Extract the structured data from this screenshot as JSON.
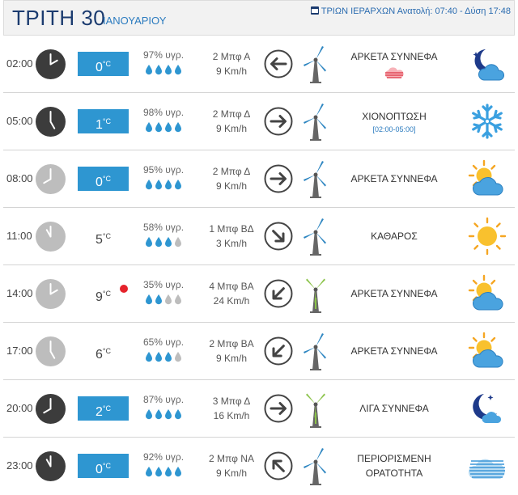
{
  "header": {
    "day": "ΤΡΙΤΗ 30",
    "month": "ΙΑΝΟΥΑΡΙΟΥ",
    "info": "ΤΡΙΩΝ ΙΕΡΑΡΧΩΝ Ανατολή: 07:40 - Δύση 17:48"
  },
  "colors": {
    "temp_box": "#2e96d1",
    "hot_dot": "#e5232b",
    "drop_full": "#2e96d1",
    "drop_empty": "#bdbdbd"
  },
  "rows": [
    {
      "time": "02:00",
      "clock": "dark",
      "temp": "0",
      "unit": "°C",
      "temp_style": "box",
      "hot": false,
      "humidity": "97% υγρ.",
      "drops_filled": 4,
      "wind_bft": "2 Μπφ Α",
      "wind_kmh": "9 Km/h",
      "wind_dir": "arrow-left-icon",
      "turbine": "turbine-blue-icon",
      "condition": "ΑΡΚΕΤΑ ΣΥΝΝΕΦΑ",
      "condition_sub": "",
      "mini_icon": "fog-red-icon",
      "weather_icon": "night-cloud-icon"
    },
    {
      "time": "05:00",
      "clock": "dark",
      "temp": "1",
      "unit": "°C",
      "temp_style": "box",
      "hot": false,
      "humidity": "98% υγρ.",
      "drops_filled": 4,
      "wind_bft": "2 Μπφ Δ",
      "wind_kmh": "9 Km/h",
      "wind_dir": "arrow-right-icon",
      "turbine": "turbine-blue-icon",
      "condition": "ΧΙΟΝΟΠΤΩΣΗ",
      "condition_sub": "[02:00-05:00]",
      "mini_icon": "",
      "weather_icon": "snowflake-icon"
    },
    {
      "time": "08:00",
      "clock": "light",
      "temp": "0",
      "unit": "°C",
      "temp_style": "box",
      "hot": false,
      "humidity": "95% υγρ.",
      "drops_filled": 4,
      "wind_bft": "2 Μπφ Δ",
      "wind_kmh": "9 Km/h",
      "wind_dir": "arrow-right-icon",
      "turbine": "turbine-blue-icon",
      "condition": "ΑΡΚΕΤΑ ΣΥΝΝΕΦΑ",
      "condition_sub": "",
      "mini_icon": "",
      "weather_icon": "sun-cloud-icon"
    },
    {
      "time": "11:00",
      "clock": "light",
      "temp": "5",
      "unit": "°C",
      "temp_style": "plain",
      "hot": false,
      "humidity": "58% υγρ.",
      "drops_filled": 3,
      "wind_bft": "1 Μπφ ΒΔ",
      "wind_kmh": "3 Km/h",
      "wind_dir": "arrow-down-right-icon",
      "turbine": "turbine-blue-icon",
      "condition": "ΚΑΘΑΡΟΣ",
      "condition_sub": "",
      "mini_icon": "",
      "weather_icon": "sun-icon"
    },
    {
      "time": "14:00",
      "clock": "light",
      "temp": "9",
      "unit": "°C",
      "temp_style": "plain",
      "hot": true,
      "humidity": "35% υγρ.",
      "drops_filled": 2,
      "wind_bft": "4 Μπφ ΒΑ",
      "wind_kmh": "24 Km/h",
      "wind_dir": "arrow-down-left-icon",
      "turbine": "turbine-green-icon",
      "condition": "ΑΡΚΕΤΑ ΣΥΝΝΕΦΑ",
      "condition_sub": "",
      "mini_icon": "",
      "weather_icon": "sun-cloud-icon"
    },
    {
      "time": "17:00",
      "clock": "light",
      "temp": "6",
      "unit": "°C",
      "temp_style": "plain",
      "hot": false,
      "humidity": "65% υγρ.",
      "drops_filled": 3,
      "wind_bft": "2 Μπφ ΒΑ",
      "wind_kmh": "9 Km/h",
      "wind_dir": "arrow-down-left-icon",
      "turbine": "turbine-blue-icon",
      "condition": "ΑΡΚΕΤΑ ΣΥΝΝΕΦΑ",
      "condition_sub": "",
      "mini_icon": "",
      "weather_icon": "sun-cloud-icon"
    },
    {
      "time": "20:00",
      "clock": "dark",
      "temp": "2",
      "unit": "°C",
      "temp_style": "box",
      "hot": false,
      "humidity": "87% υγρ.",
      "drops_filled": 4,
      "wind_bft": "3 Μπφ Δ",
      "wind_kmh": "16 Km/h",
      "wind_dir": "arrow-right-icon",
      "turbine": "turbine-green-icon",
      "condition": "ΛΙΓΑ ΣΥΝΝΕΦΑ",
      "condition_sub": "",
      "mini_icon": "",
      "weather_icon": "moon-small-cloud-icon"
    },
    {
      "time": "23:00",
      "clock": "dark",
      "temp": "0",
      "unit": "°C",
      "temp_style": "box",
      "hot": false,
      "humidity": "92% υγρ.",
      "drops_filled": 4,
      "wind_bft": "2 Μπφ ΝΑ",
      "wind_kmh": "9 Km/h",
      "wind_dir": "arrow-up-left-icon",
      "turbine": "turbine-blue-icon",
      "condition": "ΠΕΡΙΟΡΙΣΜΕΝΗ ΟΡΑΤΟΤΗΤΑ",
      "condition_sub": "",
      "mini_icon": "",
      "weather_icon": "fog-icon"
    }
  ]
}
